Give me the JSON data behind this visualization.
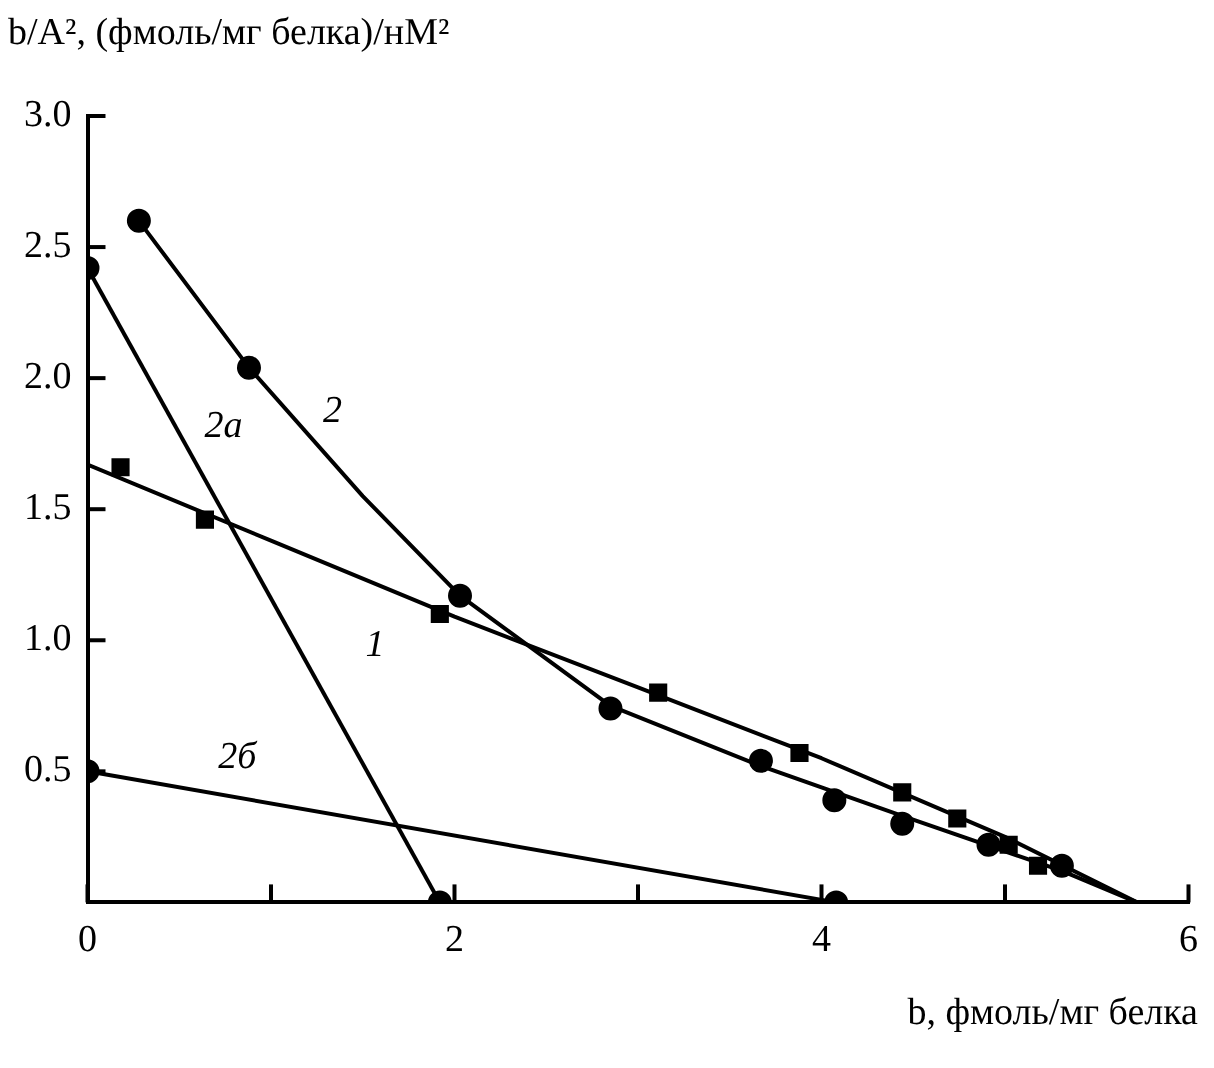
{
  "chart_data": {
    "type": "line",
    "xlabel": "b, фмоль/мг белка",
    "ylabel": "b/A², (фмоль/мг белка)/нМ²",
    "xlim": [
      0,
      6
    ],
    "xticks": [
      0,
      {
        "value": 1,
        "label": null
      },
      2,
      {
        "value": 3,
        "label": null
      },
      4,
      {
        "value": 5,
        "label": null
      },
      6
    ],
    "ylim": [
      0,
      3
    ],
    "yticks": [
      {
        "value": 0.5,
        "label": "0.5"
      },
      {
        "value": 1,
        "label": "1.0"
      },
      {
        "value": 1.5,
        "label": "1.5"
      },
      {
        "value": 2,
        "label": "2.0"
      },
      {
        "value": 2.5,
        "label": "2.5"
      },
      {
        "value": 3,
        "label": "3.0"
      }
    ],
    "grid": false,
    "legend": false,
    "series": [
      {
        "type": "scatter",
        "marker": "square",
        "color": "#000000",
        "x": [
          0.18,
          0.64,
          1.92,
          3.11,
          3.88,
          4.44,
          4.74,
          5.02,
          5.18
        ],
        "values": [
          1.66,
          1.46,
          1.1,
          0.8,
          0.57,
          0.42,
          0.32,
          0.22,
          0.14
        ]
      },
      {
        "type": "line",
        "name": "1",
        "marker": "none",
        "color": "#000000",
        "x": [
          0,
          1,
          2,
          3,
          4,
          5,
          5.72
        ],
        "values": [
          1.67,
          1.38,
          1.09,
          0.82,
          0.55,
          0.25,
          0
        ]
      },
      {
        "type": "scatter",
        "marker": "circle",
        "color": "#000000",
        "x": [
          0.28,
          0.88,
          2.03,
          2.85,
          3.67,
          4.07,
          4.44,
          4.91,
          5.31
        ],
        "values": [
          2.6,
          2.04,
          1.17,
          0.74,
          0.54,
          0.39,
          0.3,
          0.22,
          0.14
        ]
      },
      {
        "type": "line",
        "name": "2",
        "marker": "none",
        "color": "#000000",
        "x": [
          0.28,
          0.88,
          1.5,
          2.03,
          2.85,
          3.67,
          4.44,
          5.31,
          5.72
        ],
        "values": [
          2.6,
          2.04,
          1.55,
          1.17,
          0.75,
          0.52,
          0.33,
          0.12,
          0
        ]
      },
      {
        "type": "line",
        "name": "2a",
        "marker": "circle",
        "color": "#000000",
        "x": [
          0,
          1.92
        ],
        "values": [
          2.42,
          0
        ]
      },
      {
        "type": "line",
        "name": "2б",
        "marker": "circle",
        "color": "#000000",
        "x": [
          0,
          4.08
        ],
        "values": [
          0.5,
          0
        ]
      }
    ]
  }
}
